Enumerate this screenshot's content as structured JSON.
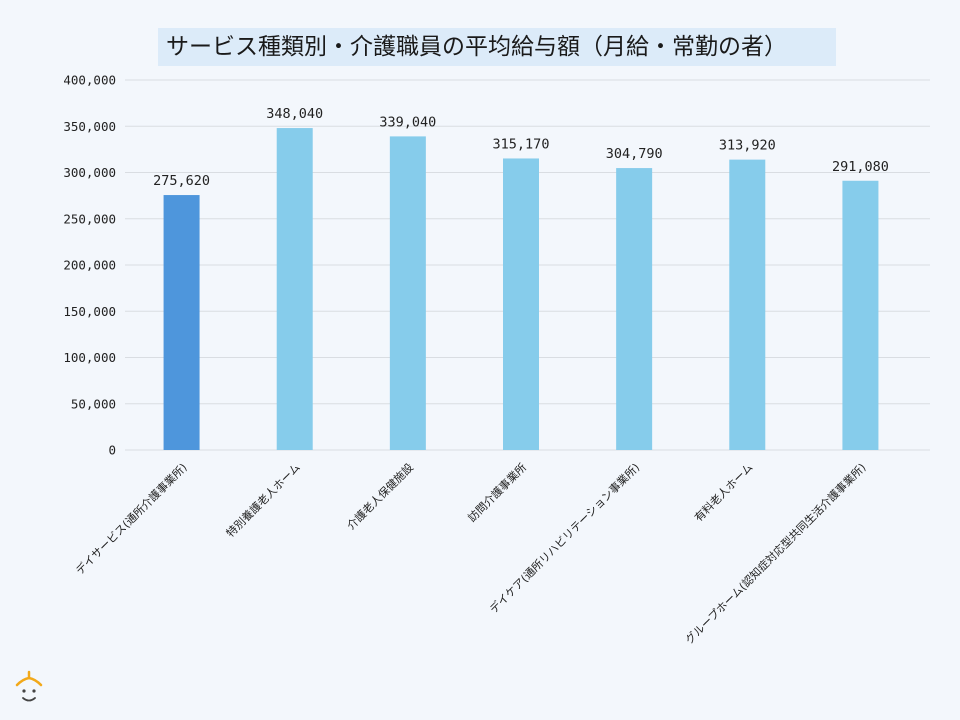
{
  "chart_data": {
    "type": "bar",
    "title": "サービス種類別・介護職員の平均給与額（月給・常勤の者）",
    "categories": [
      "デイサービス(通所介護事業所)",
      "特別養護老人ホーム",
      "介護老人保健施設",
      "訪問介護事業所",
      "デイケア(通所リハビリテーション事業所)",
      "有料老人ホーム",
      "グループホーム(認知症対応型共同生活介護事業所)"
    ],
    "values": [
      275620,
      348040,
      339040,
      315170,
      304790,
      313920,
      291080
    ],
    "data_labels": [
      "275,620",
      "348,040",
      "339,040",
      "315,170",
      "304,790",
      "313,920",
      "291,080"
    ],
    "highlight_index": 0,
    "ylim": [
      0,
      400000
    ],
    "yticks": [
      0,
      50000,
      100000,
      150000,
      200000,
      250000,
      300000,
      350000,
      400000
    ],
    "ytick_labels": [
      "0",
      "50,000",
      "100,000",
      "150,000",
      "200,000",
      "250,000",
      "300,000",
      "350,000",
      "400,000"
    ],
    "xlabel": "",
    "ylabel": "",
    "grid": true,
    "colors": {
      "bar": "#86cceb",
      "highlight": "#4e96dc",
      "grid": "#d9dde2"
    }
  },
  "logo": {
    "icon": "person-face-icon"
  }
}
